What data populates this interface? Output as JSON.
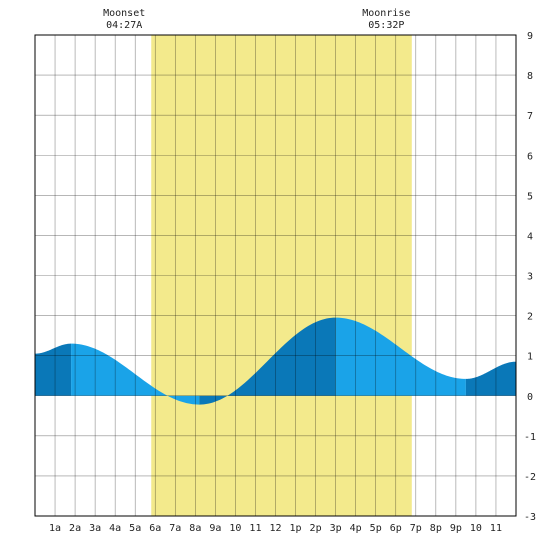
{
  "chart_data": {
    "type": "area",
    "title": "",
    "xlabel": "",
    "ylabel": "",
    "ylim": [
      -3,
      9
    ],
    "xlim_hours": [
      0,
      24
    ],
    "grid": true,
    "y_ticks": [
      "9",
      "8",
      "7",
      "6",
      "5",
      "4",
      "3",
      "2",
      "1",
      "0",
      "-1",
      "-2",
      "-3"
    ],
    "x_ticks": [
      "1a",
      "2a",
      "3a",
      "4a",
      "5a",
      "6a",
      "7a",
      "8a",
      "9a",
      "10",
      "11",
      "12",
      "1p",
      "2p",
      "3p",
      "4p",
      "5p",
      "6p",
      "7p",
      "8p",
      "9p",
      "10",
      "11"
    ],
    "daylight": {
      "start_hour": 5.8,
      "end_hour": 18.8,
      "color": "#f3ea8c"
    },
    "annotations": [
      {
        "label": "Moonset",
        "time": "04:27A",
        "hour": 4.45
      },
      {
        "label": "Moonrise",
        "time": "05:32P",
        "hour": 17.53
      }
    ],
    "tide_extremes": [
      {
        "hour": 0,
        "height": 1.05
      },
      {
        "hour": 1.8,
        "height": 1.3
      },
      {
        "hour": 8.2,
        "height": -0.22
      },
      {
        "hour": 15.0,
        "height": 1.95
      },
      {
        "hour": 21.5,
        "height": 0.42
      },
      {
        "hour": 24,
        "height": 0.85
      }
    ],
    "colors": {
      "tide_light": "#1aa3e8",
      "tide_dark": "#0a78b8",
      "grid": "#000000",
      "background": "#ffffff"
    }
  }
}
